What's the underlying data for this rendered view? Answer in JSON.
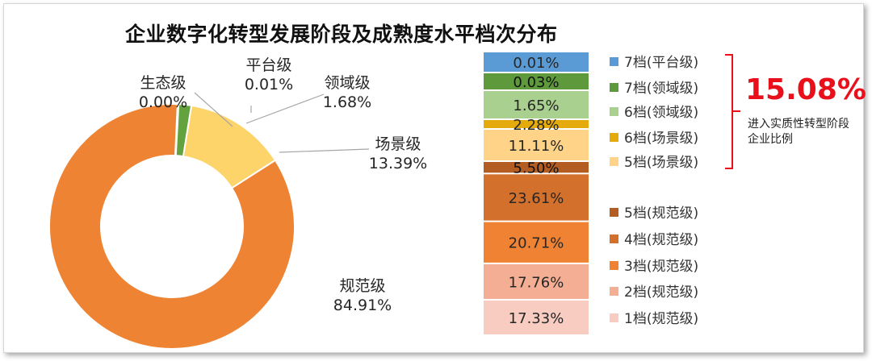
{
  "colors": {
    "title": "#111111",
    "accent_red": "#e8101a",
    "leader_line": "#a6a6a6"
  },
  "chart_data": [
    {
      "type": "pie",
      "subtype": "donut",
      "title": "企业数字化转型发展阶段及成熟度水平档次分布",
      "slices": [
        {
          "label": "生态级",
          "value": 0.0,
          "display": "0.00%",
          "color": "#4a7fc1"
        },
        {
          "label": "平台级",
          "value": 0.01,
          "display": "0.01%",
          "color": "#3c6fb5"
        },
        {
          "label": "领域级",
          "value": 1.68,
          "display": "1.68%",
          "color": "#63a23e"
        },
        {
          "label": "场景级",
          "value": 13.39,
          "display": "13.39%",
          "color": "#fdd46a"
        },
        {
          "label": "规范级",
          "value": 84.91,
          "display": "84.91%",
          "color": "#ee8433"
        }
      ]
    },
    {
      "type": "bar",
      "subtype": "stacked-100",
      "segments": [
        {
          "label": "7档(平台级)",
          "value": 0.01,
          "display": "0.01%",
          "color": "#5b9bd5"
        },
        {
          "label": "7档(领域级)",
          "value": 0.03,
          "display": "0.03%",
          "color": "#5e9a3c"
        },
        {
          "label": "6档(领域级)",
          "value": 1.65,
          "display": "1.65%",
          "color": "#a9d08e"
        },
        {
          "label": "6档(场景级)",
          "value": 2.28,
          "display": "2.28%",
          "color": "#e5ab0c"
        },
        {
          "label": "5档(场景级)",
          "value": 11.11,
          "display": "11.11%",
          "color": "#ffd488"
        },
        {
          "label": "5档(规范级)",
          "value": 5.5,
          "display": "5.50%",
          "color": "#b45d23"
        },
        {
          "label": "4档(规范级)",
          "value": 23.61,
          "display": "23.61%",
          "color": "#d2702c"
        },
        {
          "label": "3档(规范级)",
          "value": 20.71,
          "display": "20.71%",
          "color": "#ef8333"
        },
        {
          "label": "2档(规范级)",
          "value": 17.76,
          "display": "17.76%",
          "color": "#f4ae93"
        },
        {
          "label": "1档(规范级)",
          "value": 17.33,
          "display": "17.33%",
          "color": "#f8ccc0"
        }
      ],
      "legend_placement": "right"
    }
  ],
  "callout": {
    "value": "15.08%",
    "text": "进入实质性转型阶段企业比例"
  }
}
